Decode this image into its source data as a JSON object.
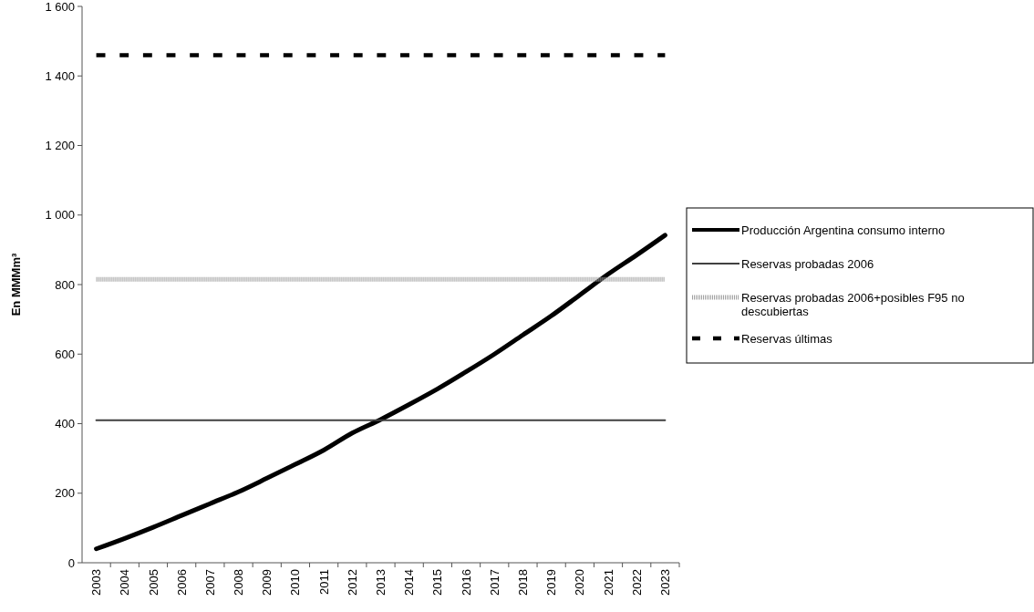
{
  "chart_data": {
    "type": "line",
    "ylabel": "En MMMm³",
    "categories": [
      "2003",
      "2004",
      "2005",
      "2006",
      "2007",
      "2008",
      "2009",
      "2010",
      "2011",
      "2012",
      "2013",
      "2014",
      "2015",
      "2016",
      "2017",
      "2018",
      "2019",
      "2020",
      "2021",
      "2022",
      "2023"
    ],
    "series": [
      {
        "name": "Producción Argentina consumo interno",
        "color": "#000000",
        "line_style": "solid",
        "values": [
          40,
          70,
          102,
          136,
          170,
          204,
          243,
          283,
          324,
          373,
          412,
          455,
          500,
          549,
          600,
          655,
          710,
          770,
          830,
          885,
          942
        ]
      },
      {
        "name": "Reservas probadas 2006",
        "color": "#404040",
        "line_style": "solid",
        "values": [
          410,
          410,
          410,
          410,
          410,
          410,
          410,
          410,
          410,
          410,
          410,
          410,
          410,
          410,
          410,
          410,
          410,
          410,
          410,
          410,
          410
        ]
      },
      {
        "name": "Reservas probadas 2006+posibles F95 no descubiertas",
        "color": "#a0a0a0",
        "line_style": "dotted",
        "values": [
          815,
          815,
          815,
          815,
          815,
          815,
          815,
          815,
          815,
          815,
          815,
          815,
          815,
          815,
          815,
          815,
          815,
          815,
          815,
          815,
          815
        ]
      },
      {
        "name": "Reservas últimas",
        "color": "#000000",
        "line_style": "dashed",
        "values": [
          1460,
          1460,
          1460,
          1460,
          1460,
          1460,
          1460,
          1460,
          1460,
          1460,
          1460,
          1460,
          1460,
          1460,
          1460,
          1460,
          1460,
          1460,
          1460,
          1460,
          1460
        ]
      }
    ],
    "ylim": [
      0,
      1600
    ],
    "yticks": [
      0,
      200,
      400,
      600,
      800,
      {
        "value": 1000,
        "label": "1 000"
      },
      {
        "value": 1200,
        "label": "1 200"
      },
      {
        "value": 1400,
        "label": "1 400"
      },
      {
        "value": 1600,
        "label": "1 600"
      }
    ],
    "legend": "right",
    "marker": "none",
    "grid": false
  }
}
